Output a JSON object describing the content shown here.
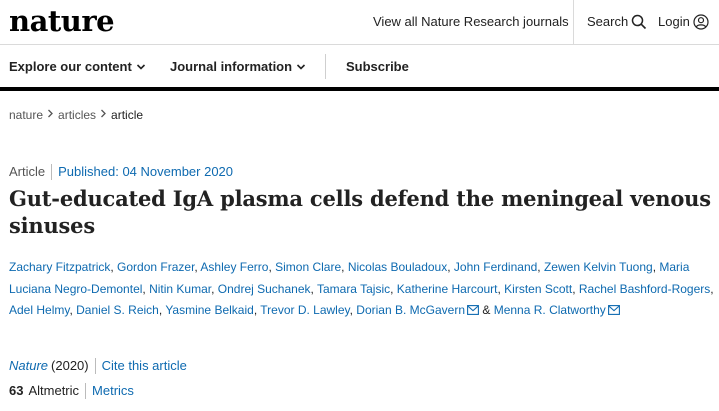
{
  "header": {
    "logo": "nature",
    "journals_link": "View all Nature Research journals",
    "search_label": "Search",
    "login_label": "Login"
  },
  "nav": {
    "explore": "Explore our content",
    "journal_info": "Journal information",
    "subscribe": "Subscribe"
  },
  "breadcrumb": {
    "items": [
      "nature",
      "articles",
      "article"
    ]
  },
  "article": {
    "type": "Article",
    "published": "Published: 04 November 2020",
    "title": "Gut-educated IgA plasma cells defend the meningeal venous sinuses"
  },
  "authors": [
    "Zachary Fitzpatrick",
    "Gordon Frazer",
    "Ashley Ferro",
    "Simon Clare",
    "Nicolas Bouladoux",
    "John Ferdinand",
    "Zewen Kelvin Tuong",
    "Maria Luciana Negro-Demontel",
    "Nitin Kumar",
    "Ondrej Suchanek",
    "Tamara Tajsic",
    "Katherine Harcourt",
    "Kirsten Scott",
    "Rachel Bashford-Rogers",
    "Adel Helmy",
    "Daniel S. Reich",
    "Yasmine Belkaid",
    "Trevor D. Lawley",
    "Dorian B. McGavern",
    "Menna R. Clatworthy"
  ],
  "authors_ampersand": "&",
  "citation": {
    "journal": "Nature",
    "year": "(2020)",
    "cite_link": "Cite this article"
  },
  "metrics": {
    "altmetric_score": "63",
    "altmetric_label": "Altmetric",
    "metrics_link": "Metrics"
  },
  "colors": {
    "link": "#0e6ab0",
    "text": "#222222",
    "rule": "#000000"
  },
  "icons": {
    "search": "search-icon",
    "login": "user-icon",
    "dropdown": "chevron-down-icon",
    "breadcrumb_sep": "chevron-right-icon",
    "email": "mail-icon"
  }
}
